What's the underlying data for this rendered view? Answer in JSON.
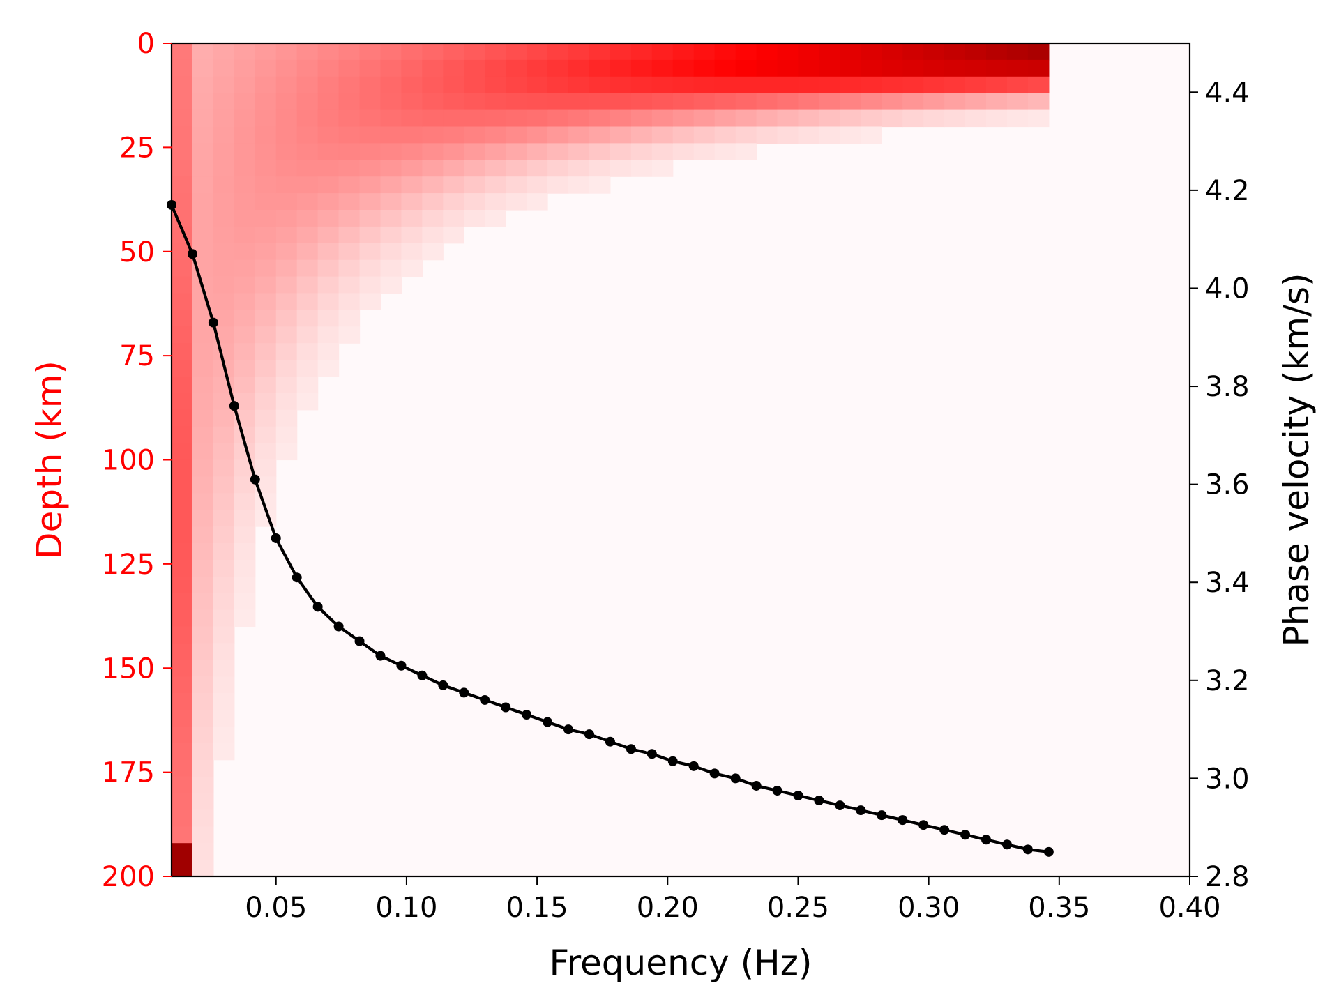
{
  "chart_data": {
    "type": "line",
    "subtype": "heatmap-with-line-overlay",
    "title": "",
    "xlabel": "Frequency (Hz)",
    "ylabel_left": "Depth (km)",
    "ylabel_right": "Phase velocity (km/s)",
    "xlim": [
      0.01,
      0.4
    ],
    "ylim_left": [
      200,
      0
    ],
    "ylim_right": [
      2.8,
      4.5
    ],
    "xticks": [
      "0.05",
      "0.10",
      "0.15",
      "0.20",
      "0.25",
      "0.30",
      "0.35",
      "0.40"
    ],
    "yticks_left": [
      "0",
      "25",
      "50",
      "75",
      "100",
      "125",
      "150",
      "175",
      "200"
    ],
    "yticks_right": [
      "2.8",
      "3.0",
      "3.2",
      "3.4",
      "3.6",
      "3.8",
      "4.0",
      "4.2",
      "4.4"
    ],
    "grid": false,
    "legend": "none",
    "colors": {
      "left_axis": "#ff0000",
      "line": "#000000",
      "heatmap_low": "#fff5f5",
      "heatmap_high": "#a00000"
    },
    "heatmap": {
      "description": "Sensitivity kernel: normalized sensitivity vs frequency and depth",
      "f_start": 0.01,
      "f_end": 0.35,
      "f_step": 0.008,
      "depth_max": 200,
      "depth_step": 4
    },
    "series": [
      {
        "values": [
          {
            "x": 0.01,
            "y": 4.17
          },
          {
            "x": 0.018,
            "y": 4.07
          },
          {
            "x": 0.026,
            "y": 3.93
          },
          {
            "x": 0.034,
            "y": 3.76
          },
          {
            "x": 0.042,
            "y": 3.61
          },
          {
            "x": 0.05,
            "y": 3.49
          },
          {
            "x": 0.058,
            "y": 3.41
          },
          {
            "x": 0.066,
            "y": 3.35
          },
          {
            "x": 0.074,
            "y": 3.31
          },
          {
            "x": 0.082,
            "y": 3.28
          },
          {
            "x": 0.09,
            "y": 3.25
          },
          {
            "x": 0.098,
            "y": 3.23
          },
          {
            "x": 0.106,
            "y": 3.21
          },
          {
            "x": 0.114,
            "y": 3.19
          },
          {
            "x": 0.122,
            "y": 3.175
          },
          {
            "x": 0.13,
            "y": 3.16
          },
          {
            "x": 0.138,
            "y": 3.145
          },
          {
            "x": 0.146,
            "y": 3.13
          },
          {
            "x": 0.154,
            "y": 3.115
          },
          {
            "x": 0.162,
            "y": 3.1
          },
          {
            "x": 0.17,
            "y": 3.09
          },
          {
            "x": 0.178,
            "y": 3.075
          },
          {
            "x": 0.186,
            "y": 3.06
          },
          {
            "x": 0.194,
            "y": 3.05
          },
          {
            "x": 0.202,
            "y": 3.035
          },
          {
            "x": 0.21,
            "y": 3.025
          },
          {
            "x": 0.218,
            "y": 3.01
          },
          {
            "x": 0.226,
            "y": 3.0
          },
          {
            "x": 0.234,
            "y": 2.985
          },
          {
            "x": 0.242,
            "y": 2.975
          },
          {
            "x": 0.25,
            "y": 2.965
          },
          {
            "x": 0.258,
            "y": 2.955
          },
          {
            "x": 0.266,
            "y": 2.945
          },
          {
            "x": 0.274,
            "y": 2.935
          },
          {
            "x": 0.282,
            "y": 2.925
          },
          {
            "x": 0.29,
            "y": 2.915
          },
          {
            "x": 0.298,
            "y": 2.905
          },
          {
            "x": 0.306,
            "y": 2.895
          },
          {
            "x": 0.314,
            "y": 2.885
          },
          {
            "x": 0.322,
            "y": 2.875
          },
          {
            "x": 0.33,
            "y": 2.865
          },
          {
            "x": 0.338,
            "y": 2.855
          },
          {
            "x": 0.346,
            "y": 2.85
          }
        ]
      }
    ]
  }
}
